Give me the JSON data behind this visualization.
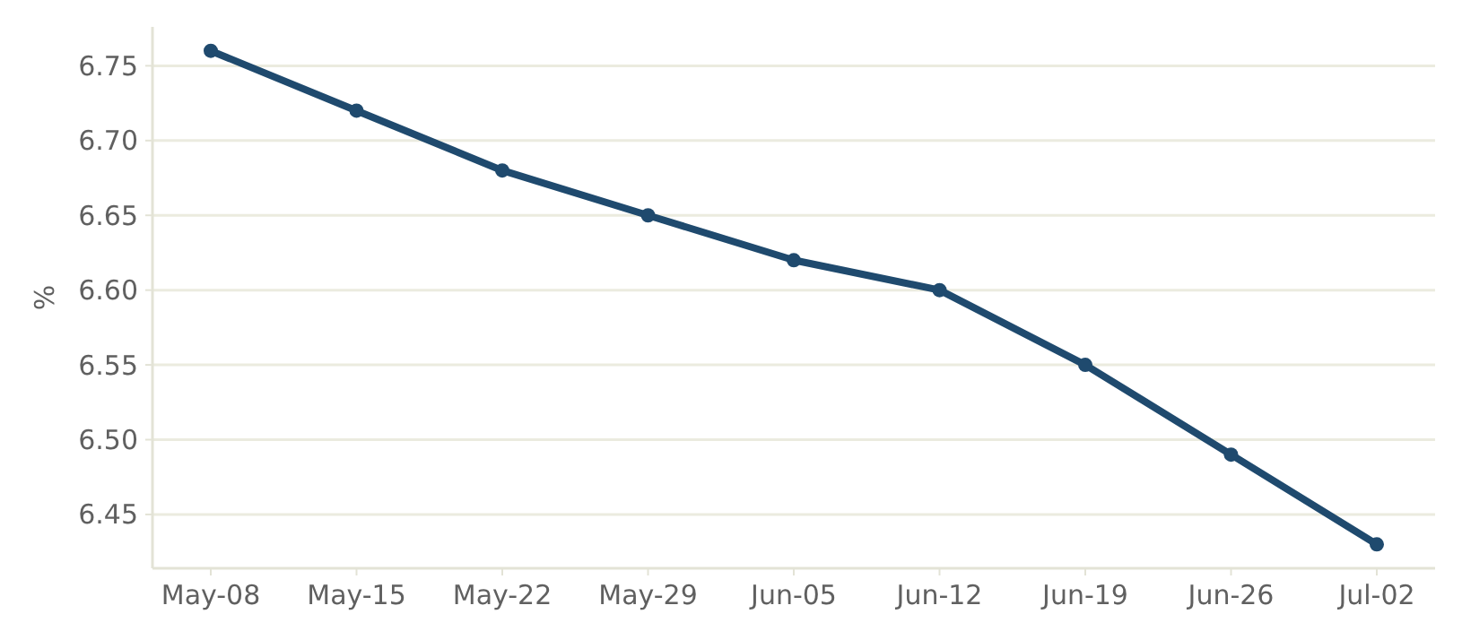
{
  "chart_data": {
    "type": "line",
    "ylabel": "%",
    "categories": [
      "May-08",
      "May-15",
      "May-22",
      "May-29",
      "Jun-05",
      "Jun-12",
      "Jun-19",
      "Jun-26",
      "Jul-02"
    ],
    "series": [
      {
        "color": "#1f4a6e",
        "values": [
          6.76,
          6.72,
          6.68,
          6.65,
          6.62,
          6.6,
          6.55,
          6.49,
          6.43
        ]
      }
    ],
    "ylim": [
      6.414,
      6.776
    ],
    "yticks": [
      {
        "value": 6.45,
        "label": "6.45"
      },
      {
        "value": 6.5,
        "label": "6.50"
      },
      {
        "value": 6.55,
        "label": "6.55"
      },
      {
        "value": 6.6,
        "label": "6.60"
      },
      {
        "value": 6.65,
        "label": "6.65"
      },
      {
        "value": 6.7,
        "label": "6.70"
      },
      {
        "value": 6.75,
        "label": "6.75"
      }
    ],
    "grid": "y",
    "marker": "circle",
    "line_style": "solid"
  }
}
